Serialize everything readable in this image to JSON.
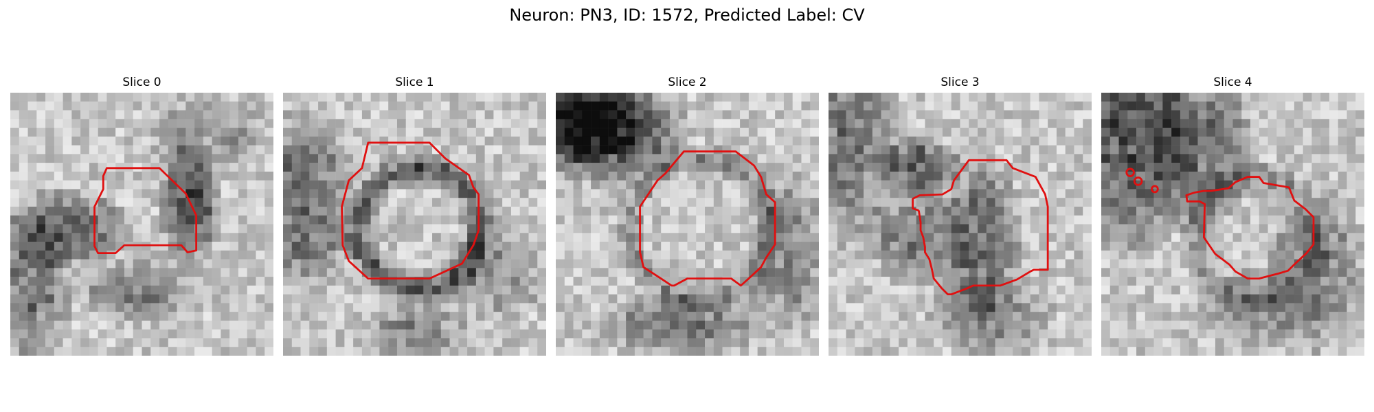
{
  "figure": {
    "title": "Neuron: PN3, ID: 1572, Predicted Label: CV"
  },
  "panels": [
    {
      "title": "Slice 0"
    },
    {
      "title": "Slice 1"
    },
    {
      "title": "Slice 2"
    },
    {
      "title": "Slice 3"
    },
    {
      "title": "Slice 4"
    }
  ],
  "colors": {
    "contour": "#e01010",
    "background": "#ffffff"
  }
}
